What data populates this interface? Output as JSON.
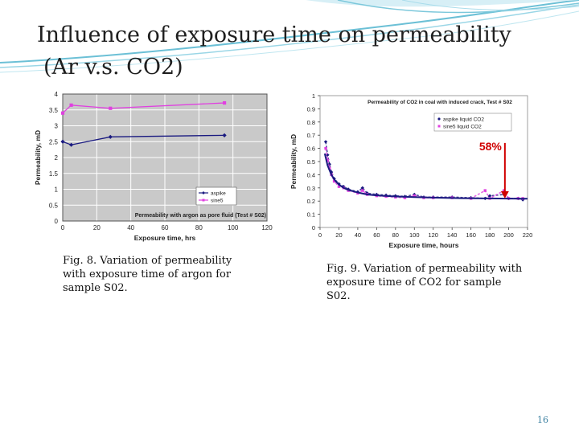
{
  "slide": {
    "title_line1": "Influence of exposure time on permeability",
    "title_line2": "(Ar v.s. CO2)",
    "page_number": "16",
    "accent_color": "#5fb8cf"
  },
  "captions": {
    "fig8": "Fig. 8. Variation of permeability with exposure time of argon for sample S02.",
    "fig9": "Fig. 9. Variation of permeability with exposure time of CO2 for sample S02."
  },
  "chart_data": [
    {
      "type": "line",
      "title": "Permeability with argon as pore fluid (Test # S02)",
      "xlabel": "Exposure time, hrs",
      "ylabel": "Permeability, mD",
      "xlim": [
        0,
        120
      ],
      "ylim": [
        0,
        4
      ],
      "xticks": [
        0,
        20,
        40,
        60,
        80,
        100,
        120
      ],
      "yticks": [
        0,
        0.5,
        1,
        1.5,
        2,
        2.5,
        3,
        3.5,
        4
      ],
      "grid": true,
      "legend_position": "bottom-right",
      "series": [
        {
          "name": "aspike",
          "color": "#1a1a80",
          "marker": "diamond",
          "x": [
            0,
            5,
            28,
            95
          ],
          "y": [
            2.5,
            2.4,
            2.65,
            2.7
          ]
        },
        {
          "name": "sine5",
          "color": "#e040e0",
          "marker": "square",
          "x": [
            0,
            5,
            28,
            95
          ],
          "y": [
            3.4,
            3.65,
            3.55,
            3.72
          ]
        }
      ]
    },
    {
      "type": "line",
      "title": "Permeability of CO2 in coal with induced crack, Test # S02",
      "xlabel": "Exposure time, hours",
      "ylabel": "Permeability, mD",
      "xlim": [
        0,
        220
      ],
      "ylim": [
        0,
        1
      ],
      "xticks": [
        0,
        20,
        40,
        60,
        80,
        100,
        120,
        140,
        160,
        180,
        200,
        220
      ],
      "yticks": [
        0,
        0.1,
        0.2,
        0.3,
        0.4,
        0.5,
        0.6,
        0.7,
        0.8,
        0.9,
        1
      ],
      "grid": false,
      "legend_position": "top-right",
      "annotation": {
        "text": "58%",
        "color": "#d00000",
        "arrow_x": 196,
        "arrow_from_y": 0.58,
        "arrow_to_y": 0.22
      },
      "series": [
        {
          "name": "aspike liquid CO2",
          "color": "#1a1a80",
          "marker": "diamond",
          "x": [
            6,
            8,
            10,
            12,
            15,
            20,
            25,
            30,
            40,
            45,
            50,
            60,
            70,
            80,
            90,
            100,
            110,
            120,
            140,
            160,
            175,
            180,
            195,
            200,
            210,
            215
          ],
          "y": [
            0.65,
            0.55,
            0.48,
            0.42,
            0.37,
            0.33,
            0.31,
            0.29,
            0.27,
            0.3,
            0.26,
            0.25,
            0.245,
            0.24,
            0.235,
            0.25,
            0.23,
            0.23,
            0.23,
            0.225,
            0.22,
            0.24,
            0.25,
            0.22,
            0.22,
            0.21
          ]
        },
        {
          "name": "sine5 liquid CO2",
          "color": "#e040e0",
          "marker": "square",
          "x": [
            6,
            8,
            10,
            12,
            15,
            20,
            25,
            30,
            40,
            45,
            50,
            60,
            70,
            80,
            90,
            100,
            110,
            120,
            140,
            160,
            175,
            180,
            195,
            200,
            210,
            215
          ],
          "y": [
            0.6,
            0.51,
            0.45,
            0.4,
            0.35,
            0.31,
            0.3,
            0.28,
            0.26,
            0.28,
            0.25,
            0.24,
            0.235,
            0.23,
            0.225,
            0.24,
            0.225,
            0.225,
            0.225,
            0.22,
            0.28,
            0.22,
            0.28,
            0.22,
            0.22,
            0.22
          ]
        },
        {
          "name": "",
          "color": "#1a1a80",
          "marker": "none",
          "trend": true,
          "x": [
            5,
            8,
            12,
            16,
            20,
            25,
            30,
            40,
            50,
            60,
            80,
            100,
            120,
            150,
            180,
            200,
            220
          ],
          "y": [
            0.56,
            0.47,
            0.4,
            0.355,
            0.325,
            0.3,
            0.285,
            0.265,
            0.25,
            0.243,
            0.235,
            0.23,
            0.226,
            0.222,
            0.22,
            0.219,
            0.218
          ]
        }
      ]
    }
  ]
}
